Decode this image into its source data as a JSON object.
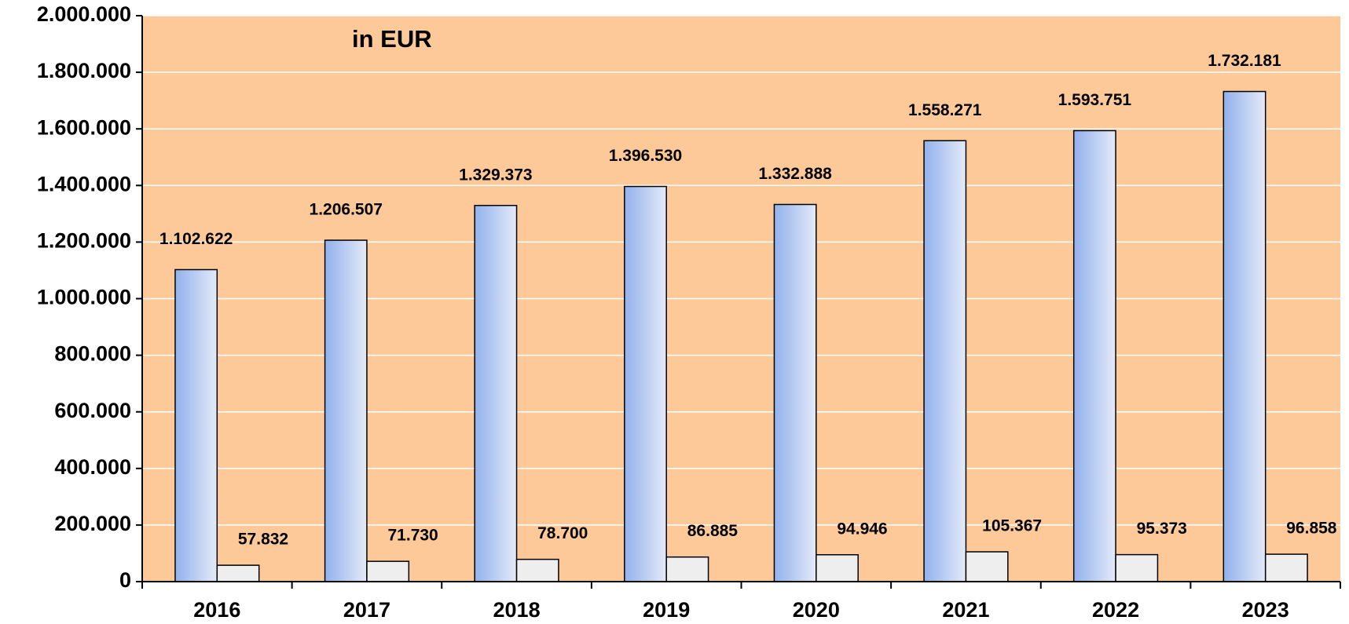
{
  "chart_data": {
    "type": "bar",
    "annotations": [
      "in EUR"
    ],
    "categories": [
      "2016",
      "2017",
      "2018",
      "2019",
      "2020",
      "2021",
      "2022",
      "2023"
    ],
    "series": [
      {
        "color": "#92b1ec",
        "values": [
          1102622,
          1206507,
          1329373,
          1396530,
          1332888,
          1558271,
          1593751,
          1732181
        ],
        "value_labels": [
          "1.102.622",
          "1.206.507",
          "1.329.373",
          "1.396.530",
          "1.332.888",
          "1.558.271",
          "1.593.751",
          "1.732.181"
        ]
      },
      {
        "color": "#eeeeee",
        "values": [
          57832,
          71730,
          78700,
          86885,
          94946,
          105367,
          95373,
          96858
        ],
        "value_labels": [
          "57.832",
          "71.730",
          "78.700",
          "86.885",
          "94.946",
          "105.367",
          "95.373",
          "96.858"
        ]
      }
    ],
    "ylim": [
      0,
      2000000
    ],
    "yticks": [
      0,
      {
        "value": 200000,
        "label": "200.000"
      },
      {
        "value": 400000,
        "label": "400.000"
      },
      {
        "value": 600000,
        "label": "600.000"
      },
      {
        "value": 800000,
        "label": "800.000"
      },
      {
        "value": 1000000,
        "label": "1.000.000"
      },
      {
        "value": 1200000,
        "label": "1.200.000"
      },
      {
        "value": 1400000,
        "label": "1.400.000"
      },
      {
        "value": 1600000,
        "label": "1.600.000"
      },
      {
        "value": 1800000,
        "label": "1.800.000"
      },
      {
        "value": 2000000,
        "label": "2.000.000"
      }
    ],
    "grid": true,
    "background": "#fdc998"
  }
}
